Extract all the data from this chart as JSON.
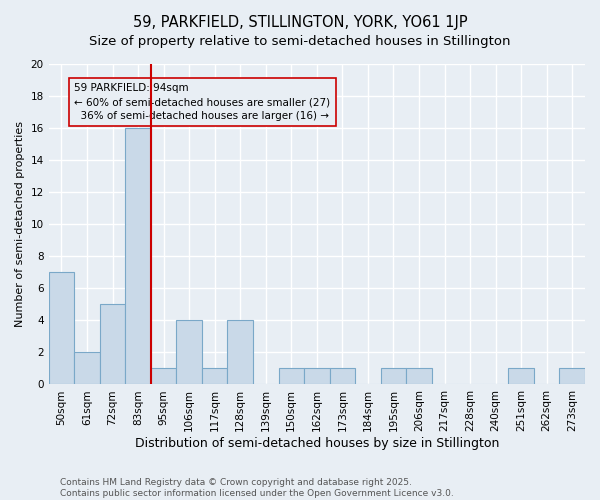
{
  "title": "59, PARKFIELD, STILLINGTON, YORK, YO61 1JP",
  "subtitle": "Size of property relative to semi-detached houses in Stillington",
  "xlabel": "Distribution of semi-detached houses by size in Stillington",
  "ylabel": "Number of semi-detached properties",
  "categories": [
    "50sqm",
    "61sqm",
    "72sqm",
    "83sqm",
    "95sqm",
    "106sqm",
    "117sqm",
    "128sqm",
    "139sqm",
    "150sqm",
    "162sqm",
    "173sqm",
    "184sqm",
    "195sqm",
    "206sqm",
    "217sqm",
    "228sqm",
    "240sqm",
    "251sqm",
    "262sqm",
    "273sqm"
  ],
  "values": [
    7,
    2,
    5,
    16,
    1,
    4,
    1,
    4,
    0,
    1,
    1,
    1,
    0,
    1,
    1,
    0,
    0,
    0,
    1,
    0,
    1
  ],
  "bar_color": "#c9d9e8",
  "bar_edgecolor": "#7aa8c8",
  "bar_linewidth": 0.8,
  "subject_line_color": "#cc0000",
  "smaller_pct": "60%",
  "smaller_count": 27,
  "larger_pct": "36%",
  "larger_count": 16,
  "annotation_box_edgecolor": "#cc0000",
  "ylim": [
    0,
    20
  ],
  "yticks": [
    0,
    2,
    4,
    6,
    8,
    10,
    12,
    14,
    16,
    18,
    20
  ],
  "background_color": "#e8eef4",
  "grid_color": "#ffffff",
  "footer": "Contains HM Land Registry data © Crown copyright and database right 2025.\nContains public sector information licensed under the Open Government Licence v3.0.",
  "title_fontsize": 10.5,
  "subtitle_fontsize": 9.5,
  "xlabel_fontsize": 9,
  "ylabel_fontsize": 8,
  "tick_fontsize": 7.5,
  "annotation_fontsize": 7.5,
  "footer_fontsize": 6.5
}
